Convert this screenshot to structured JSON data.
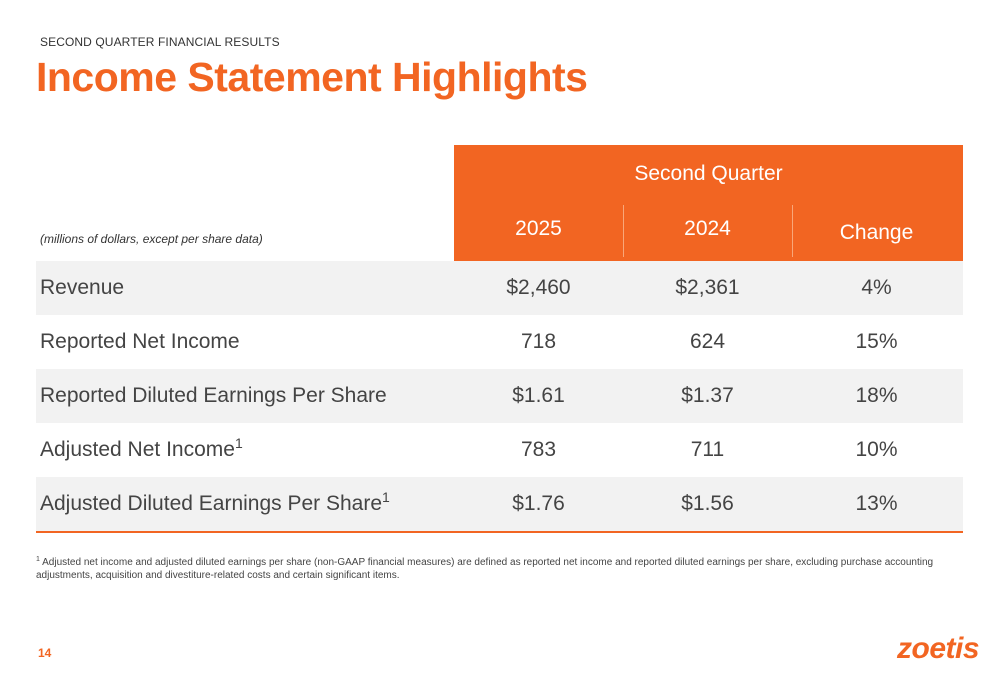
{
  "header": {
    "section_label": "SECOND QUARTER FINANCIAL RESULTS",
    "title": "Income Statement Highlights"
  },
  "table": {
    "units_note": "(millions of dollars, except per share data)",
    "group_header": "Second Quarter",
    "columns": [
      "2025",
      "2024",
      "Change"
    ],
    "rows": [
      {
        "label": "Revenue",
        "footnote_ref": "",
        "values": [
          "$2,460",
          "$2,361",
          "4%"
        ]
      },
      {
        "label": "Reported Net Income",
        "footnote_ref": "",
        "values": [
          "718",
          "624",
          "15%"
        ]
      },
      {
        "label": "Reported Diluted Earnings Per Share",
        "footnote_ref": "",
        "values": [
          "$1.61",
          "$1.37",
          "18%"
        ]
      },
      {
        "label": "Adjusted Net Income",
        "footnote_ref": "1",
        "values": [
          "783",
          "711",
          "10%"
        ]
      },
      {
        "label": "Adjusted Diluted Earnings Per Share",
        "footnote_ref": "1",
        "values": [
          "$1.76",
          "$1.56",
          "13%"
        ]
      }
    ]
  },
  "footnote": {
    "marker": "1",
    "text": "Adjusted net income and adjusted diluted earnings per share (non-GAAP financial measures) are defined as reported net income and reported diluted earnings per share, excluding purchase accounting adjustments, acquisition and divestiture-related costs and certain significant items."
  },
  "page_number": "14",
  "logo_text": "zoetis",
  "colors": {
    "accent": "#f26522",
    "row_shade": "#f2f2f2",
    "text": "#444444"
  }
}
